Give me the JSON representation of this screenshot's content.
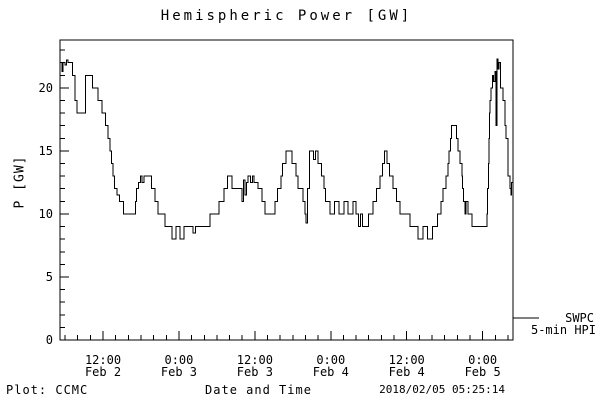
{
  "title": "Hemispheric Power [GW]",
  "legend": {
    "line1": "SWPC",
    "line2": "5-min HPI"
  },
  "footer": {
    "left": "Plot: CCMC",
    "right": "2018/02/05 05:25:14"
  },
  "chart_data": {
    "type": "line",
    "step": true,
    "title": "Hemispheric Power [GW]",
    "xlabel": "Date and Time",
    "ylabel": "P [GW]",
    "x_unit": "hours since 2018-02-02 00:00",
    "xlim_hours": [
      5.2,
      76.8
    ],
    "ylim": [
      0,
      23.8
    ],
    "x_minor_step_hours": 2,
    "y_minor_step": 1,
    "grid": false,
    "colors": {
      "line": "#000000",
      "background": "#ffffff",
      "text": "#000000"
    },
    "x_major_ticks": [
      {
        "hours": 12,
        "time": "12:00",
        "date": "Feb 2"
      },
      {
        "hours": 24,
        "time": "0:00",
        "date": "Feb 3"
      },
      {
        "hours": 36,
        "time": "12:00",
        "date": "Feb 3"
      },
      {
        "hours": 48,
        "time": "0:00",
        "date": "Feb 4"
      },
      {
        "hours": 60,
        "time": "12:00",
        "date": "Feb 4"
      },
      {
        "hours": 72,
        "time": "0:00",
        "date": "Feb 5"
      }
    ],
    "y_major_ticks": [
      0,
      5,
      10,
      15,
      20
    ],
    "series": [
      {
        "name": "SWPC 5-min HPI",
        "points": [
          [
            5.2,
            22
          ],
          [
            5.5,
            21.3
          ],
          [
            5.7,
            22
          ],
          [
            6.0,
            21.8
          ],
          [
            6.2,
            22.2
          ],
          [
            6.5,
            22
          ],
          [
            7.2,
            21
          ],
          [
            7.6,
            19
          ],
          [
            7.9,
            18
          ],
          [
            9.2,
            21
          ],
          [
            10.3,
            20
          ],
          [
            11.2,
            19
          ],
          [
            11.8,
            18
          ],
          [
            12.4,
            17
          ],
          [
            12.8,
            16
          ],
          [
            13.1,
            15
          ],
          [
            13.35,
            14
          ],
          [
            13.6,
            13
          ],
          [
            13.85,
            12
          ],
          [
            14.2,
            11.5
          ],
          [
            14.6,
            11
          ],
          [
            15.2,
            10
          ],
          [
            17.1,
            11
          ],
          [
            17.3,
            12
          ],
          [
            17.6,
            12.5
          ],
          [
            17.9,
            13
          ],
          [
            18.2,
            12.5
          ],
          [
            18.45,
            13
          ],
          [
            19.7,
            12
          ],
          [
            20.2,
            11
          ],
          [
            20.7,
            10
          ],
          [
            21.8,
            9
          ],
          [
            22.9,
            8
          ],
          [
            23.5,
            9
          ],
          [
            24.2,
            8
          ],
          [
            24.8,
            9
          ],
          [
            26.2,
            8.5
          ],
          [
            26.6,
            9
          ],
          [
            28.9,
            10
          ],
          [
            30.3,
            11
          ],
          [
            31.1,
            12
          ],
          [
            31.7,
            13
          ],
          [
            32.4,
            12
          ],
          [
            34.0,
            11
          ],
          [
            34.2,
            12.7
          ],
          [
            34.45,
            11.5
          ],
          [
            34.7,
            12.5
          ],
          [
            34.95,
            13
          ],
          [
            35.3,
            12.5
          ],
          [
            35.6,
            13
          ],
          [
            35.9,
            12.5
          ],
          [
            36.5,
            12
          ],
          [
            37.1,
            11
          ],
          [
            37.6,
            10
          ],
          [
            39.2,
            11
          ],
          [
            39.6,
            12
          ],
          [
            40.1,
            13
          ],
          [
            40.4,
            14
          ],
          [
            40.9,
            15
          ],
          [
            41.9,
            14
          ],
          [
            42.5,
            13
          ],
          [
            42.8,
            12
          ],
          [
            43.6,
            11
          ],
          [
            43.9,
            10
          ],
          [
            44.1,
            9.3
          ],
          [
            44.3,
            12
          ],
          [
            44.6,
            15
          ],
          [
            45.3,
            14.3
          ],
          [
            45.6,
            15
          ],
          [
            46.0,
            14
          ],
          [
            46.5,
            13
          ],
          [
            46.9,
            12
          ],
          [
            47.2,
            11
          ],
          [
            47.9,
            10
          ],
          [
            48.6,
            11
          ],
          [
            49.3,
            10
          ],
          [
            50.1,
            11
          ],
          [
            50.7,
            10
          ],
          [
            51.5,
            11
          ],
          [
            52.0,
            10
          ],
          [
            52.4,
            9
          ],
          [
            52.7,
            10
          ],
          [
            53.0,
            9
          ],
          [
            54.0,
            10
          ],
          [
            54.7,
            11
          ],
          [
            55.2,
            12
          ],
          [
            55.8,
            13
          ],
          [
            56.2,
            14
          ],
          [
            56.5,
            15
          ],
          [
            56.9,
            14
          ],
          [
            57.3,
            13
          ],
          [
            57.8,
            12
          ],
          [
            58.4,
            11
          ],
          [
            58.9,
            10
          ],
          [
            60.5,
            9
          ],
          [
            61.8,
            8
          ],
          [
            62.6,
            9
          ],
          [
            63.3,
            8
          ],
          [
            64.1,
            9
          ],
          [
            64.9,
            10
          ],
          [
            65.4,
            11
          ],
          [
            65.7,
            12
          ],
          [
            66.2,
            13
          ],
          [
            66.5,
            14
          ],
          [
            66.7,
            15
          ],
          [
            66.9,
            16
          ],
          [
            67.1,
            17
          ],
          [
            67.9,
            16
          ],
          [
            68.1,
            15
          ],
          [
            68.4,
            14
          ],
          [
            68.7,
            13
          ],
          [
            68.85,
            12
          ],
          [
            69.0,
            11
          ],
          [
            69.2,
            10
          ],
          [
            69.4,
            11
          ],
          [
            69.7,
            10
          ],
          [
            70.3,
            9
          ],
          [
            72.7,
            10
          ],
          [
            72.8,
            12
          ],
          [
            72.9,
            14
          ],
          [
            73.0,
            16
          ],
          [
            73.1,
            18
          ],
          [
            73.2,
            19
          ],
          [
            73.35,
            20
          ],
          [
            73.55,
            21
          ],
          [
            73.75,
            20.5
          ],
          [
            73.95,
            21.3
          ],
          [
            74.15,
            17
          ],
          [
            74.3,
            22.3
          ],
          [
            74.45,
            21.5
          ],
          [
            74.6,
            22
          ],
          [
            74.8,
            20
          ],
          [
            75.2,
            19
          ],
          [
            75.5,
            17
          ],
          [
            75.7,
            16
          ],
          [
            76.0,
            13
          ],
          [
            76.3,
            12
          ],
          [
            76.45,
            11.5
          ],
          [
            76.6,
            12.5
          ],
          [
            76.8,
            12
          ]
        ]
      }
    ]
  }
}
